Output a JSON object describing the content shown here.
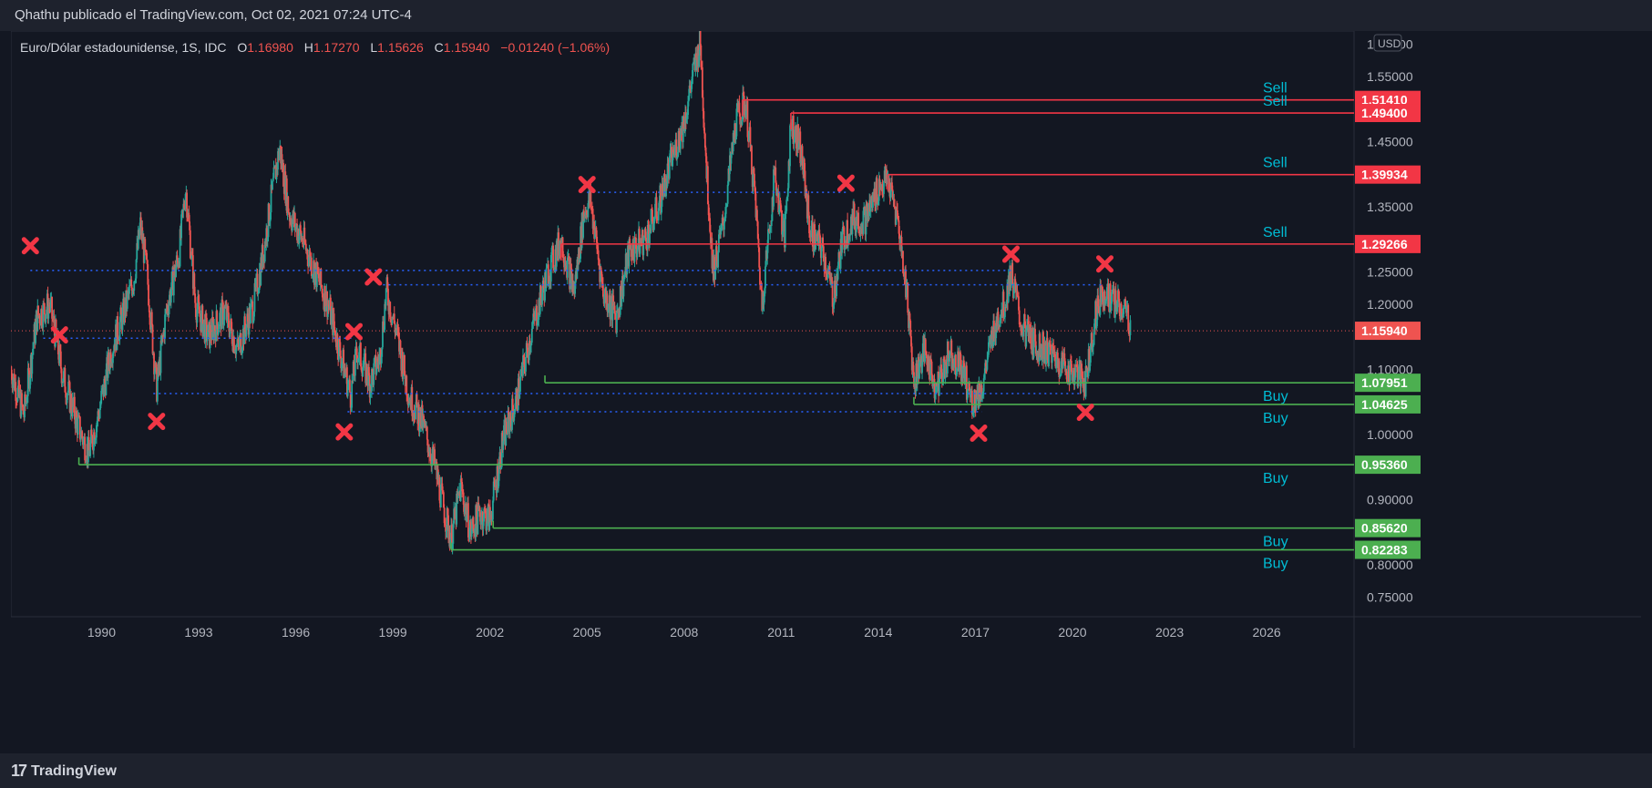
{
  "header": {
    "publisher_text": "Qhathu publicado el TradingView.com, Oct 02, 2021 07:24 UTC-4"
  },
  "legend": {
    "symbol": "Euro/Dólar estadounidense, 1S, IDC",
    "open_label": "O",
    "open": "1.16980",
    "high_label": "H",
    "high": "1.17270",
    "low_label": "L",
    "low": "1.15626",
    "close_label": "C",
    "close": "1.15940",
    "change": "−0.01240 (−1.06%)"
  },
  "footer": {
    "brand": "TradingView"
  },
  "colors": {
    "background": "#131722",
    "up": "#26a69a",
    "down": "#ef5350",
    "sell": "#f23645",
    "buy": "#4caf50",
    "dotted": "#2962ff",
    "cross": "#f23645",
    "label_text": "#00bcd4"
  },
  "chart_data": {
    "type": "candlestick",
    "currency": "USD",
    "ylim": [
      0.72,
      1.62
    ],
    "xlim": [
      1987.2,
      2028.7
    ],
    "y_ticks": [
      "1.60000",
      "1.55000",
      "1.45000",
      "1.35000",
      "1.25000",
      "1.20000",
      "1.10000",
      "1.00000",
      "0.90000",
      "0.80000",
      "0.75000"
    ],
    "x_ticks": [
      "1990",
      "1993",
      "1996",
      "1999",
      "2002",
      "2005",
      "2008",
      "2011",
      "2014",
      "2017",
      "2020",
      "2023",
      "2026"
    ],
    "price_line": {
      "value": 1.1594,
      "label": "1.15940"
    },
    "sell_levels": [
      {
        "value": 1.5141,
        "label": "1.51410",
        "start": 2009.8,
        "text": "Sell"
      },
      {
        "value": 1.494,
        "label": "1.49400",
        "start": 2011.3,
        "text": "Sell"
      },
      {
        "value": 1.39934,
        "label": "1.39934",
        "start": 2014.3,
        "text": "Sell"
      },
      {
        "value": 1.29266,
        "label": "1.29266",
        "start": 2004.2,
        "text": "Sell"
      }
    ],
    "buy_levels": [
      {
        "value": 1.07951,
        "label": "1.07951",
        "start": 2003.7,
        "text": "Buy"
      },
      {
        "value": 1.04625,
        "label": "1.04625",
        "start": 2015.1,
        "text": "Buy"
      },
      {
        "value": 0.9536,
        "label": "0.95360",
        "start": 1989.3,
        "text": "Buy"
      },
      {
        "value": 0.8562,
        "label": "0.85620",
        "start": 2002.1,
        "text": "Buy"
      },
      {
        "value": 0.82283,
        "label": "0.82283",
        "start": 2000.8,
        "text": "Buy"
      }
    ],
    "dotted_levels": [
      {
        "value": 1.252,
        "start": 1987.8,
        "end": 2018.1
      },
      {
        "value": 1.148,
        "start": 1988.2,
        "end": 1997.8
      },
      {
        "value": 1.23,
        "start": 1998.7,
        "end": 2020.9
      },
      {
        "value": 1.372,
        "start": 2005.0,
        "end": 2013.0
      },
      {
        "value": 1.063,
        "start": 1991.6,
        "end": 2020.3
      },
      {
        "value": 1.035,
        "start": 1997.6,
        "end": 2017.2
      }
    ],
    "cross_marks": [
      {
        "x": 1987.8,
        "y": 1.29
      },
      {
        "x": 1988.7,
        "y": 1.153
      },
      {
        "x": 1991.7,
        "y": 1.02
      },
      {
        "x": 1997.5,
        "y": 1.004
      },
      {
        "x": 1997.8,
        "y": 1.158
      },
      {
        "x": 1998.4,
        "y": 1.242
      },
      {
        "x": 2005.0,
        "y": 1.384
      },
      {
        "x": 2013.0,
        "y": 1.386
      },
      {
        "x": 2017.1,
        "y": 1.002
      },
      {
        "x": 2018.1,
        "y": 1.277
      },
      {
        "x": 2020.4,
        "y": 1.034
      },
      {
        "x": 2021.0,
        "y": 1.262
      }
    ],
    "price_path": [
      [
        1987.2,
        1.1
      ],
      [
        1987.6,
        1.03
      ],
      [
        1988.0,
        1.18
      ],
      [
        1988.4,
        1.2
      ],
      [
        1988.8,
        1.09
      ],
      [
        1989.3,
        1.01
      ],
      [
        1989.6,
        0.97
      ],
      [
        1989.9,
        1.03
      ],
      [
        1990.3,
        1.13
      ],
      [
        1990.7,
        1.19
      ],
      [
        1991.0,
        1.24
      ],
      [
        1991.2,
        1.32
      ],
      [
        1991.4,
        1.25
      ],
      [
        1991.7,
        1.07
      ],
      [
        1992.0,
        1.19
      ],
      [
        1992.4,
        1.28
      ],
      [
        1992.6,
        1.38
      ],
      [
        1992.9,
        1.2
      ],
      [
        1993.3,
        1.15
      ],
      [
        1993.8,
        1.19
      ],
      [
        1994.2,
        1.13
      ],
      [
        1994.7,
        1.2
      ],
      [
        1995.0,
        1.28
      ],
      [
        1995.3,
        1.38
      ],
      [
        1995.5,
        1.44
      ],
      [
        1995.8,
        1.34
      ],
      [
        1996.2,
        1.3
      ],
      [
        1996.6,
        1.25
      ],
      [
        1997.0,
        1.2
      ],
      [
        1997.4,
        1.12
      ],
      [
        1997.7,
        1.06
      ],
      [
        1997.9,
        1.13
      ],
      [
        1998.3,
        1.08
      ],
      [
        1998.6,
        1.12
      ],
      [
        1998.8,
        1.22
      ],
      [
        1999.1,
        1.16
      ],
      [
        1999.5,
        1.06
      ],
      [
        1999.9,
        1.02
      ],
      [
        2000.3,
        0.95
      ],
      [
        2000.6,
        0.88
      ],
      [
        2000.8,
        0.84
      ],
      [
        2001.1,
        0.92
      ],
      [
        2001.4,
        0.85
      ],
      [
        2001.7,
        0.88
      ],
      [
        2002.0,
        0.87
      ],
      [
        2002.4,
        0.99
      ],
      [
        2002.8,
        1.05
      ],
      [
        2003.3,
        1.16
      ],
      [
        2003.8,
        1.25
      ],
      [
        2004.2,
        1.3
      ],
      [
        2004.6,
        1.22
      ],
      [
        2004.9,
        1.34
      ],
      [
        2005.1,
        1.36
      ],
      [
        2005.5,
        1.22
      ],
      [
        2005.9,
        1.18
      ],
      [
        2006.3,
        1.28
      ],
      [
        2006.8,
        1.3
      ],
      [
        2007.2,
        1.35
      ],
      [
        2007.6,
        1.42
      ],
      [
        2008.0,
        1.48
      ],
      [
        2008.3,
        1.56
      ],
      [
        2008.5,
        1.6
      ],
      [
        2008.7,
        1.4
      ],
      [
        2008.9,
        1.25
      ],
      [
        2009.2,
        1.32
      ],
      [
        2009.6,
        1.48
      ],
      [
        2009.9,
        1.51
      ],
      [
        2010.2,
        1.36
      ],
      [
        2010.4,
        1.2
      ],
      [
        2010.8,
        1.4
      ],
      [
        2011.1,
        1.3
      ],
      [
        2011.3,
        1.48
      ],
      [
        2011.6,
        1.44
      ],
      [
        2011.9,
        1.31
      ],
      [
        2012.3,
        1.28
      ],
      [
        2012.6,
        1.21
      ],
      [
        2012.9,
        1.3
      ],
      [
        2013.2,
        1.33
      ],
      [
        2013.6,
        1.33
      ],
      [
        2014.0,
        1.38
      ],
      [
        2014.3,
        1.39
      ],
      [
        2014.6,
        1.33
      ],
      [
        2014.9,
        1.21
      ],
      [
        2015.1,
        1.08
      ],
      [
        2015.4,
        1.13
      ],
      [
        2015.8,
        1.07
      ],
      [
        2016.2,
        1.13
      ],
      [
        2016.6,
        1.1
      ],
      [
        2016.9,
        1.05
      ],
      [
        2017.2,
        1.07
      ],
      [
        2017.6,
        1.17
      ],
      [
        2017.9,
        1.2
      ],
      [
        2018.1,
        1.25
      ],
      [
        2018.4,
        1.17
      ],
      [
        2018.8,
        1.14
      ],
      [
        2019.2,
        1.13
      ],
      [
        2019.6,
        1.11
      ],
      [
        2019.9,
        1.1
      ],
      [
        2020.2,
        1.09
      ],
      [
        2020.4,
        1.08
      ],
      [
        2020.7,
        1.18
      ],
      [
        2020.9,
        1.22
      ],
      [
        2021.1,
        1.21
      ],
      [
        2021.4,
        1.2
      ],
      [
        2021.7,
        1.18
      ],
      [
        2021.8,
        1.159
      ]
    ]
  }
}
